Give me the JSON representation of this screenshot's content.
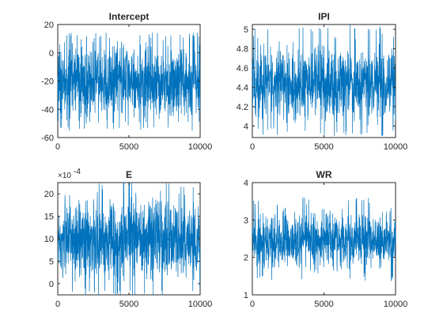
{
  "figure": {
    "background": "#ffffff",
    "axis_color": "#262626",
    "line_color": "#0072BD"
  },
  "chart_data": [
    {
      "type": "line",
      "title": "Intercept",
      "xlabel": "",
      "ylabel": "",
      "xlim": [
        0,
        10000
      ],
      "ylim": [
        -60,
        20
      ],
      "xticks": [
        0,
        5000,
        10000
      ],
      "yticks": [
        -60,
        -40,
        -20,
        0,
        20
      ],
      "xtick_labels": [
        "0",
        "5000",
        "10000"
      ],
      "ytick_labels": [
        "-60",
        "-40",
        "-20",
        "0",
        "20"
      ],
      "grid": false,
      "series": [
        {
          "n_samples": 10000,
          "mean": -20,
          "typical_min": -40,
          "typical_max": 2,
          "observed_min": -55,
          "observed_max": 14
        }
      ]
    },
    {
      "type": "line",
      "title": "IPI",
      "xlabel": "",
      "ylabel": "",
      "xlim": [
        0,
        10000
      ],
      "ylim": [
        3.88,
        5.05
      ],
      "xticks": [
        0,
        5000,
        10000
      ],
      "yticks": [
        4,
        4.2,
        4.4,
        4.6,
        4.8,
        5
      ],
      "xtick_labels": [
        "0",
        "5000",
        "10000"
      ],
      "ytick_labels": [
        "4",
        "4.2",
        "4.4",
        "4.6",
        "4.8",
        "5"
      ],
      "grid": false,
      "series": [
        {
          "n_samples": 10000,
          "mean": 4.45,
          "typical_min": 4.15,
          "typical_max": 4.75,
          "observed_min": 3.9,
          "observed_max": 5.05
        }
      ]
    },
    {
      "type": "line",
      "title": "E",
      "xlabel": "",
      "ylabel": "",
      "exponent_label": "×10",
      "exponent_power": "-4",
      "xlim": [
        0,
        10000
      ],
      "ylim": [
        -2.5,
        22.5
      ],
      "xticks": [
        0,
        5000,
        10000
      ],
      "yticks": [
        0,
        5,
        10,
        15,
        20
      ],
      "xtick_labels": [
        "0",
        "5000",
        "10000"
      ],
      "ytick_labels": [
        "0",
        "5",
        "10",
        "15",
        "20"
      ],
      "grid": false,
      "series": [
        {
          "n_samples": 10000,
          "mean": 10,
          "typical_min": 3,
          "typical_max": 17,
          "observed_min": -2.5,
          "observed_max": 22.5
        }
      ]
    },
    {
      "type": "line",
      "title": "WR",
      "xlabel": "",
      "ylabel": "",
      "xlim": [
        0,
        10000
      ],
      "ylim": [
        1,
        4
      ],
      "xticks": [
        0,
        5000,
        10000
      ],
      "yticks": [
        1,
        2,
        3,
        4
      ],
      "xtick_labels": [
        "0",
        "5000",
        "10000"
      ],
      "ytick_labels": [
        "1",
        "2",
        "3",
        "4"
      ],
      "grid": false,
      "series": [
        {
          "n_samples": 10000,
          "mean": 2.45,
          "typical_min": 1.9,
          "typical_max": 3.05,
          "observed_min": 1.35,
          "observed_max": 3.6
        }
      ]
    }
  ]
}
